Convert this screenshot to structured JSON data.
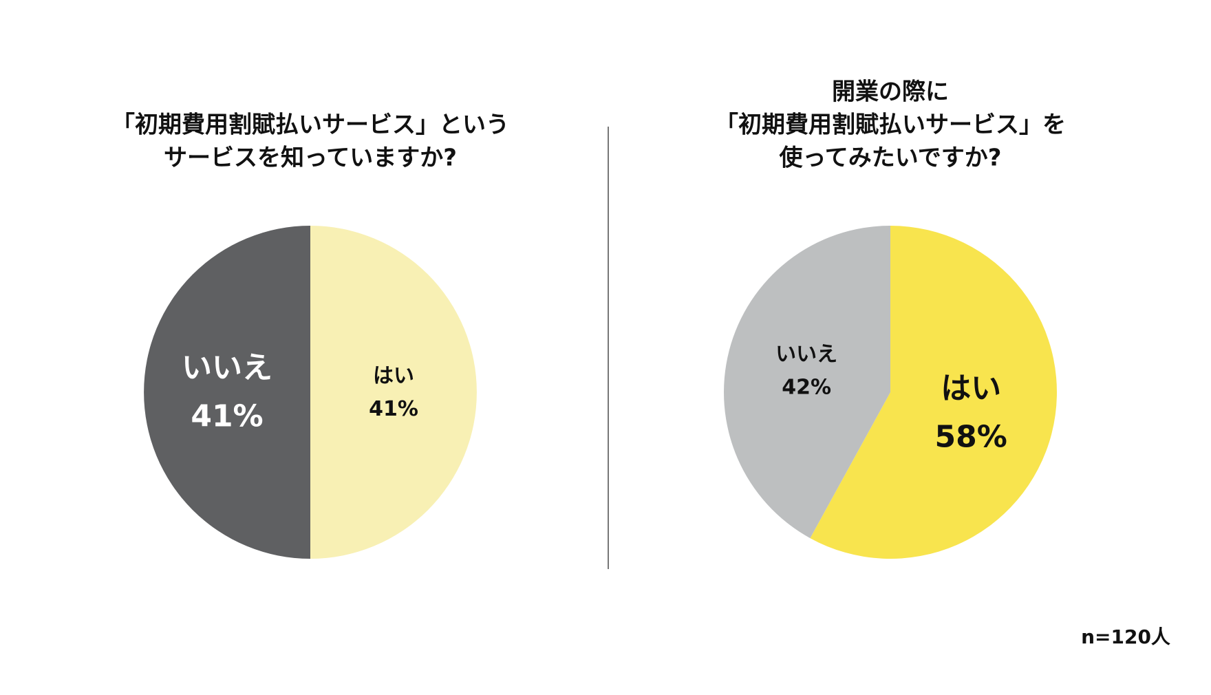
{
  "chart_data": [
    {
      "type": "pie",
      "title": [
        "「初期費用割賦払いサービス」という",
        "サービスを知っていますか?"
      ],
      "categories": [
        "はい",
        "いいえ"
      ],
      "values": [
        41,
        41
      ],
      "value_labels": [
        "41%",
        "41%"
      ],
      "colors": [
        "#f8f0b4",
        "#5f6062"
      ]
    },
    {
      "type": "pie",
      "title": [
        "開業の際に",
        "「初期費用割賦払いサービス」を",
        "使ってみたいですか?"
      ],
      "categories": [
        "はい",
        "いいえ"
      ],
      "values": [
        58,
        42
      ],
      "value_labels": [
        "58%",
        "42%"
      ],
      "colors": [
        "#f8e44e",
        "#bdbfc0"
      ]
    }
  ],
  "footnote": "n=120人"
}
